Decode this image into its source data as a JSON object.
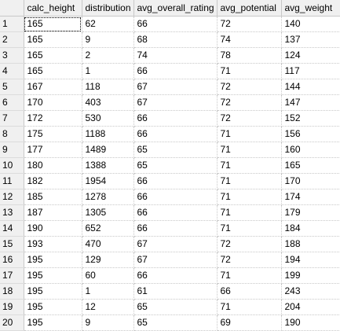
{
  "columns": [
    {
      "key": "rownum",
      "label": ""
    },
    {
      "key": "calc_height",
      "label": "calc_height"
    },
    {
      "key": "distribution",
      "label": "distribution"
    },
    {
      "key": "avg_overall_rating",
      "label": "avg_overall_rating"
    },
    {
      "key": "avg_potential",
      "label": "avg_potential"
    },
    {
      "key": "avg_weight",
      "label": "avg_weight"
    }
  ],
  "rows": [
    [
      "1",
      "165",
      "62",
      "66",
      "72",
      "140"
    ],
    [
      "2",
      "165",
      "9",
      "68",
      "74",
      "137"
    ],
    [
      "3",
      "165",
      "2",
      "74",
      "78",
      "124"
    ],
    [
      "4",
      "165",
      "1",
      "66",
      "71",
      "117"
    ],
    [
      "5",
      "167",
      "118",
      "67",
      "72",
      "144"
    ],
    [
      "6",
      "170",
      "403",
      "67",
      "72",
      "147"
    ],
    [
      "7",
      "172",
      "530",
      "66",
      "72",
      "152"
    ],
    [
      "8",
      "175",
      "1188",
      "66",
      "71",
      "156"
    ],
    [
      "9",
      "177",
      "1489",
      "65",
      "71",
      "160"
    ],
    [
      "10",
      "180",
      "1388",
      "65",
      "71",
      "165"
    ],
    [
      "11",
      "182",
      "1954",
      "66",
      "71",
      "170"
    ],
    [
      "12",
      "185",
      "1278",
      "66",
      "71",
      "174"
    ],
    [
      "13",
      "187",
      "1305",
      "66",
      "71",
      "179"
    ],
    [
      "14",
      "190",
      "652",
      "66",
      "71",
      "184"
    ],
    [
      "15",
      "193",
      "470",
      "67",
      "72",
      "188"
    ],
    [
      "16",
      "195",
      "129",
      "67",
      "72",
      "194"
    ],
    [
      "17",
      "195",
      "60",
      "66",
      "71",
      "199"
    ],
    [
      "18",
      "195",
      "1",
      "61",
      "66",
      "243"
    ],
    [
      "19",
      "195",
      "12",
      "65",
      "71",
      "204"
    ],
    [
      "20",
      "195",
      "9",
      "65",
      "69",
      "190"
    ]
  ],
  "selected_cell": {
    "row": 0,
    "col": 1
  },
  "colors": {
    "header_bg": "#f0f0f0",
    "grid_line": "#c8c8c8",
    "cell_bg": "#ffffff"
  }
}
